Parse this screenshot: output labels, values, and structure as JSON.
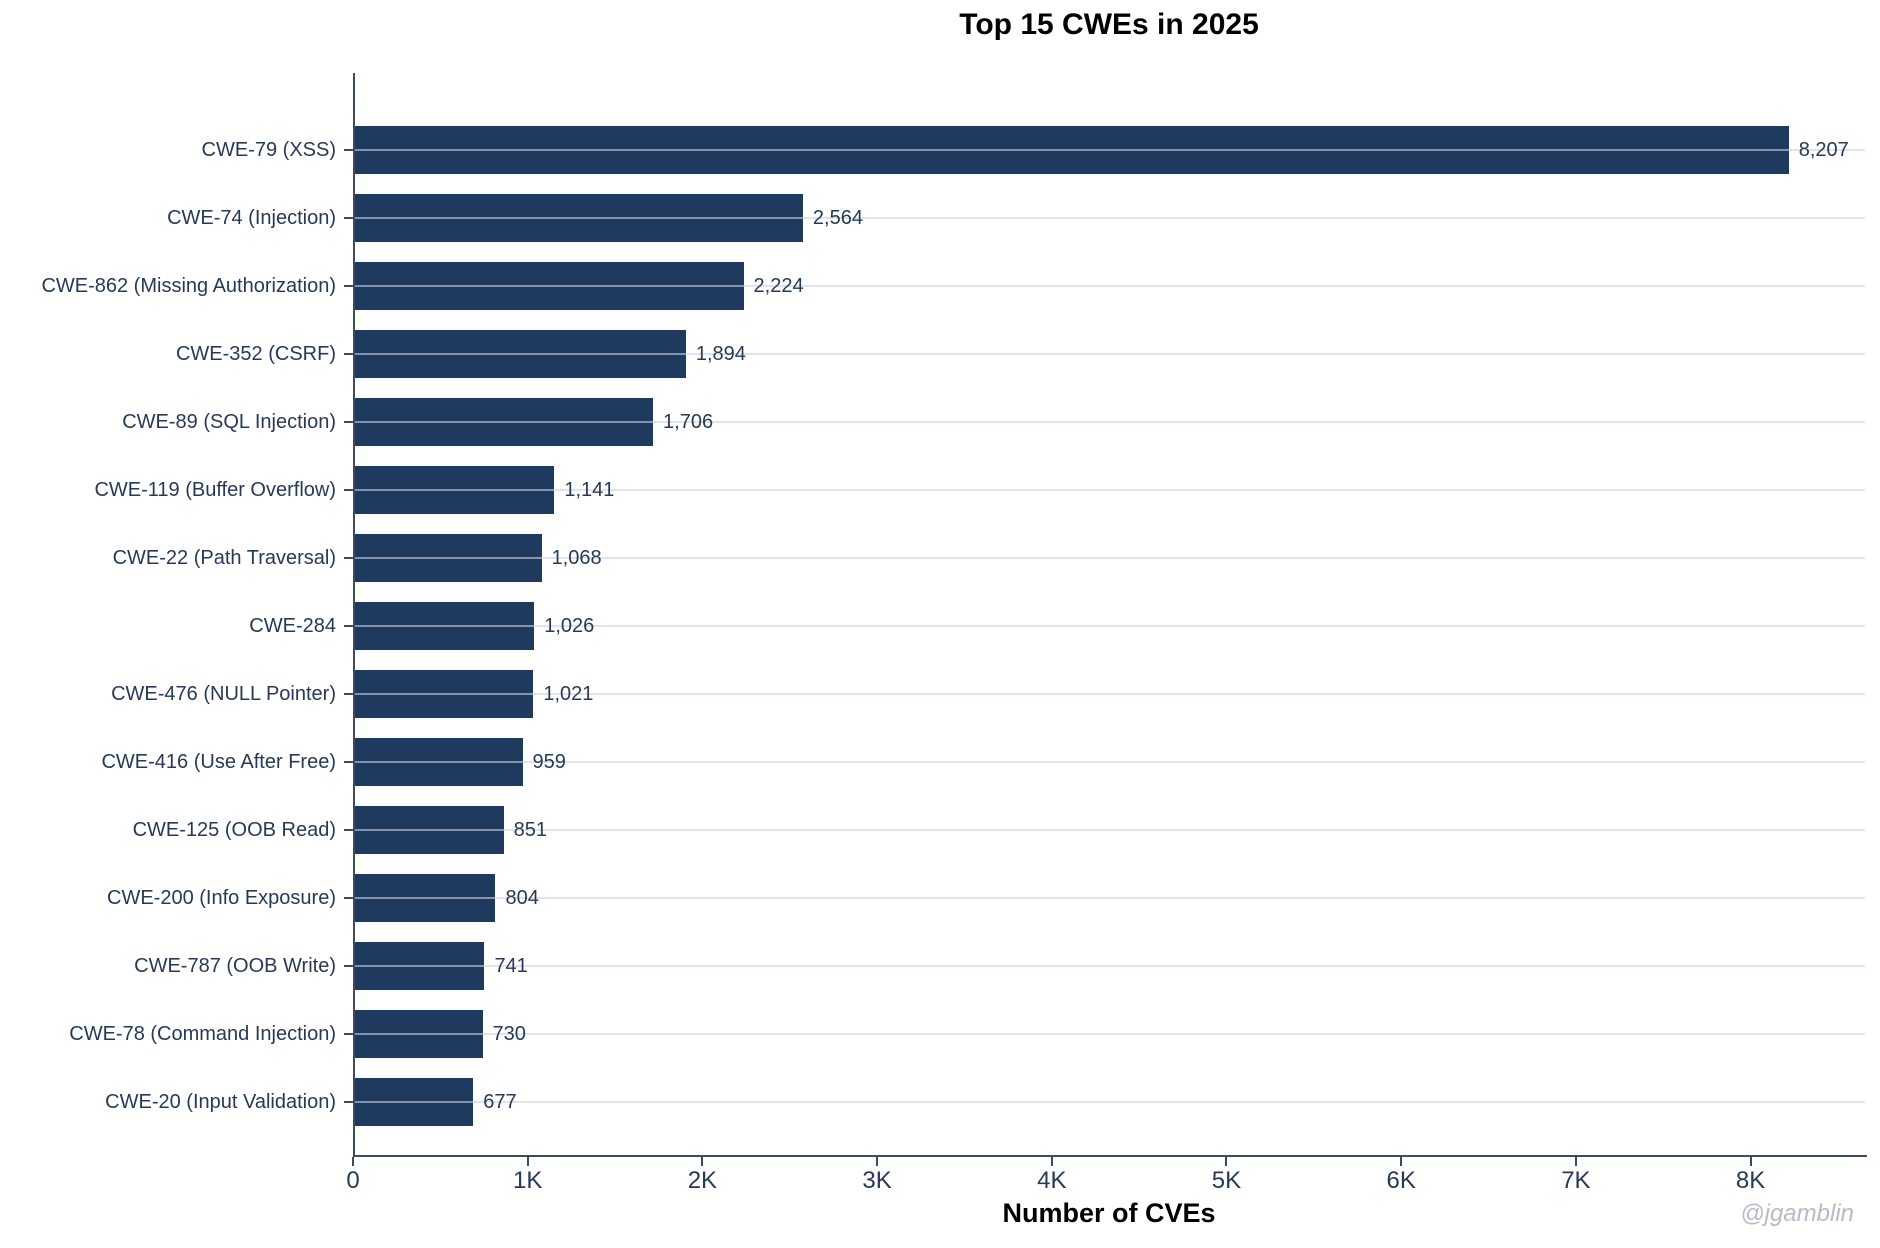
{
  "title": "Top 15 CWEs in 2025",
  "watermark": "@jgamblin",
  "chart_data": {
    "type": "bar",
    "orientation": "horizontal",
    "title": "Top 15 CWEs in 2025",
    "xlabel": "Number of CVEs",
    "ylabel": "",
    "xlim": [
      0,
      8655
    ],
    "grid": "faint horizontal gridline at each category center, drawn over bars",
    "legend": "none",
    "bar_color": "#1f3a5f",
    "text_color": "#263a56",
    "axis_color": "#3d4a63",
    "grid_color": "#e6e9f0",
    "watermark_color": "#b6bbc7",
    "categories": [
      "CWE-79 (XSS)",
      "CWE-74 (Injection)",
      "CWE-862 (Missing Authorization)",
      "CWE-352 (CSRF)",
      "CWE-89 (SQL Injection)",
      "CWE-119 (Buffer Overflow)",
      "CWE-22 (Path Traversal)",
      "CWE-284",
      "CWE-476 (NULL Pointer)",
      "CWE-416 (Use After Free)",
      "CWE-125 (OOB Read)",
      "CWE-200 (Info Exposure)",
      "CWE-787 (OOB Write)",
      "CWE-78 (Command Injection)",
      "CWE-20 (Input Validation)"
    ],
    "values": [
      8207,
      2564,
      2224,
      1894,
      1706,
      1141,
      1068,
      1026,
      1021,
      959,
      851,
      804,
      741,
      730,
      677
    ],
    "value_labels": [
      "8,207",
      "2,564",
      "2,224",
      "1,894",
      "1,706",
      "1,141",
      "1,068",
      "1,026",
      "1,021",
      "959",
      "851",
      "804",
      "741",
      "730",
      "677"
    ],
    "x_ticks": [
      {
        "value": 0,
        "label": "0"
      },
      {
        "value": 1000,
        "label": "1K"
      },
      {
        "value": 2000,
        "label": "2K"
      },
      {
        "value": 3000,
        "label": "3K"
      },
      {
        "value": 4000,
        "label": "4K"
      },
      {
        "value": 5000,
        "label": "5K"
      },
      {
        "value": 6000,
        "label": "6K"
      },
      {
        "value": 7000,
        "label": "7K"
      },
      {
        "value": 8000,
        "label": "8K"
      }
    ]
  }
}
